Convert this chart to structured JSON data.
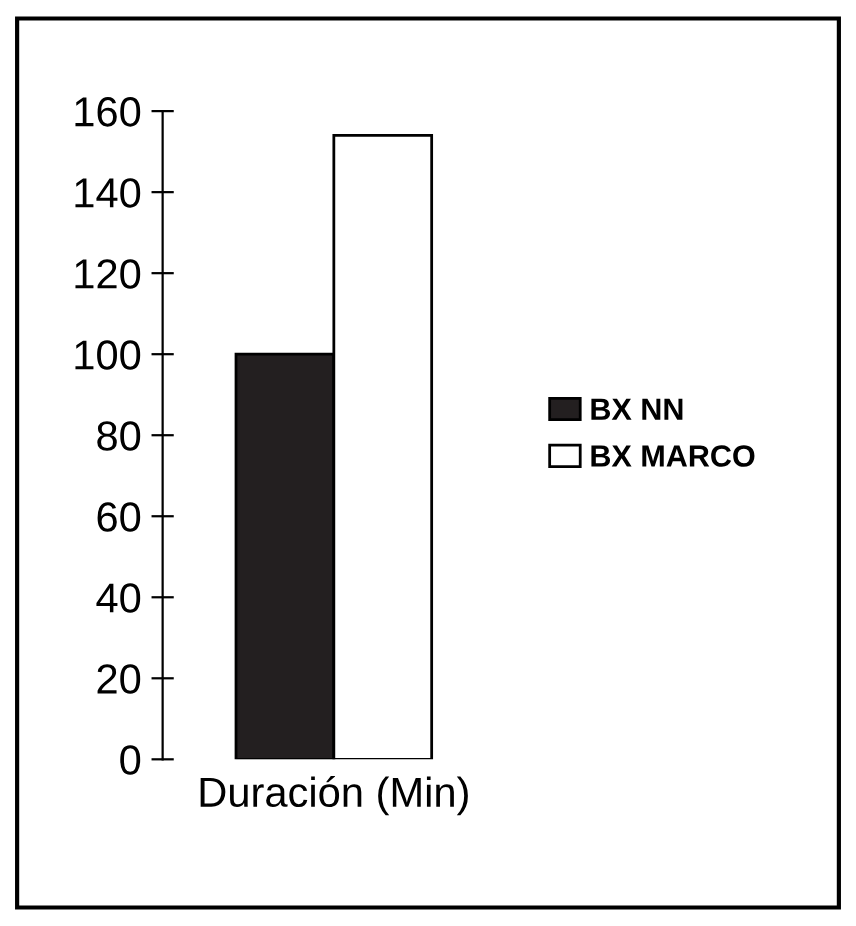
{
  "chart_data": {
    "type": "bar",
    "categories": [
      "Duración (Min)"
    ],
    "series": [
      {
        "name": "BX NN",
        "color": "#231f20",
        "values": [
          100
        ]
      },
      {
        "name": "BX MARCO",
        "color": "#ffffff",
        "values": [
          154
        ]
      }
    ],
    "ylim": [
      0,
      160
    ],
    "yticks": [
      0,
      20,
      40,
      60,
      80,
      100,
      120,
      140,
      160
    ],
    "grid": false,
    "legend": "right"
  }
}
